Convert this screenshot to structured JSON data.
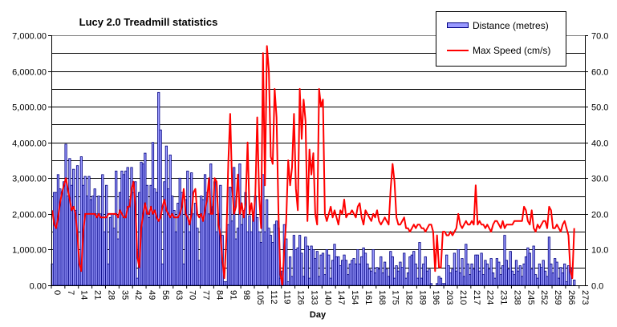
{
  "chart_data": {
    "type": "bar+line",
    "title": "Lucy 2.0 Treadmill statistics",
    "xlabel": "Day",
    "ylabel": "",
    "ylabel_right": "",
    "ylim": [
      0,
      7000
    ],
    "ylim_right": [
      0,
      70
    ],
    "y_ticks": [
      "0.00",
      "1,000.00",
      "2,000.00",
      "3,000.00",
      "4,000.00",
      "5,000.00",
      "6,000.00",
      "7,000.00"
    ],
    "y_ticks_right": [
      "0.0",
      "10.0",
      "20.0",
      "30.0",
      "40.0",
      "50.0",
      "60.0",
      "70.0"
    ],
    "x_ticks": [
      "0",
      "7",
      "14",
      "21",
      "28",
      "35",
      "42",
      "49",
      "56",
      "63",
      "70",
      "77",
      "84",
      "91",
      "98",
      "105",
      "112",
      "119",
      "126",
      "133",
      "140",
      "147",
      "154",
      "161",
      "168",
      "175",
      "182",
      "189",
      "196",
      "203",
      "210",
      "217",
      "224",
      "231",
      "238",
      "245",
      "252",
      "259",
      "266",
      "273"
    ],
    "x_range_days": [
      0,
      276
    ],
    "grid": "horizontal every 500 m (5 cm/s)",
    "legend_position": "top-right",
    "colors": {
      "distance_fill": "#9999FF",
      "distance_border": "#000080",
      "speed_line": "#FF0000"
    },
    "series": [
      {
        "name": "Distance (metres)",
        "type": "bar",
        "axis": "left",
        "values": [
          600,
          2600,
          2600,
          3100,
          2700,
          2600,
          2900,
          3950,
          2500,
          3550,
          2800,
          3250,
          2100,
          3350,
          600,
          3600,
          2800,
          3050,
          2500,
          3050,
          2400,
          2500,
          2700,
          2000,
          2500,
          2000,
          3100,
          1500,
          2800,
          600,
          1900,
          2000,
          1600,
          3200,
          1300,
          2600,
          3200,
          3100,
          3200,
          3300,
          2400,
          3300,
          2600,
          2900,
          200,
          2600,
          3450,
          3400,
          3700,
          2800,
          1900,
          2800,
          4000,
          2700,
          2600,
          5400,
          4350,
          600,
          2900,
          3900,
          2700,
          3650,
          2500,
          2100,
          1500,
          2300,
          3000,
          2600,
          600,
          2400,
          3200,
          1500,
          3150,
          2000,
          2300,
          1600,
          700,
          2500,
          2400,
          3100,
          2600,
          2000,
          3400,
          2200,
          2900,
          1500,
          2000,
          2800,
          1400,
          100,
          100,
          1700,
          2750,
          1800,
          3300,
          1300,
          1600,
          3400,
          1700,
          2100,
          2600,
          1500,
          1950,
          1500,
          2000,
          2500,
          1900,
          1500,
          1200,
          3100,
          1500,
          2400,
          1600,
          1400,
          1200,
          1700,
          1800,
          1600,
          200,
          400,
          1700,
          1300,
          100,
          800,
          250,
          1400,
          1000,
          1050,
          1400,
          900,
          250,
          1350,
          1100,
          200,
          1100,
          1000,
          750,
          950,
          250,
          850,
          900,
          300,
          1000,
          850,
          200,
          700,
          1150,
          800,
          800,
          550,
          700,
          850,
          700,
          300,
          600,
          700,
          750,
          600,
          1000,
          600,
          800,
          1050,
          900,
          600,
          450,
          400,
          1000,
          350,
          500,
          450,
          800,
          350,
          650,
          450,
          250,
          950,
          800,
          200,
          550,
          400,
          650,
          500,
          900,
          200,
          350,
          800,
          850,
          950,
          600,
          200,
          1200,
          200,
          600,
          800,
          400,
          450,
          50,
          0,
          0,
          50,
          250,
          200,
          50,
          50,
          850,
          550,
          350,
          450,
          900,
          400,
          1000,
          350,
          750,
          250,
          1150,
          600,
          300,
          600,
          450,
          850,
          850,
          400,
          900,
          300,
          700,
          600,
          450,
          750,
          350,
          200,
          750,
          650,
          300,
          550,
          1400,
          700,
          450,
          950,
          400,
          300,
          700,
          400,
          550,
          250,
          600,
          800,
          1050,
          900,
          450,
          1100,
          300,
          200,
          600,
          500,
          700,
          400,
          250,
          1350,
          600,
          350,
          750,
          650,
          200,
          500,
          350,
          600,
          100,
          550,
          500,
          0,
          150
        ]
      },
      {
        "name": "Max Speed (cm/s)",
        "type": "line",
        "axis": "right",
        "values": [
          21,
          17,
          16,
          19,
          23,
          26,
          28,
          30,
          27,
          24,
          21,
          22,
          20,
          14,
          6,
          4,
          15,
          20,
          20,
          20,
          20,
          20,
          20,
          19,
          20,
          19,
          19,
          19,
          19,
          20,
          20,
          20,
          20,
          20,
          19,
          21,
          20,
          19,
          19,
          22,
          22,
          27,
          29,
          22,
          8,
          5,
          16,
          20,
          23,
          20,
          20,
          22,
          20,
          21,
          19,
          18,
          19,
          22,
          24,
          21,
          20,
          19,
          20,
          19,
          19,
          19,
          20,
          22,
          27,
          20,
          19,
          17,
          20,
          26,
          27,
          20,
          19,
          20,
          18,
          21,
          24,
          30,
          20,
          20,
          30,
          29,
          17,
          14,
          7,
          2,
          13,
          34,
          48,
          28,
          20,
          22,
          31,
          20,
          23,
          19,
          23,
          40,
          20,
          23,
          18,
          25,
          47,
          25,
          16,
          65,
          28,
          67,
          60,
          36,
          34,
          55,
          47,
          20,
          3,
          0,
          10,
          18,
          35,
          28,
          33,
          48,
          27,
          21,
          55,
          41,
          52,
          46,
          18,
          38,
          31,
          37,
          20,
          17,
          55,
          50,
          52,
          20,
          18,
          20,
          22,
          19,
          21,
          19,
          17,
          21,
          20,
          24,
          19,
          20,
          20,
          21,
          20,
          19,
          22,
          23,
          19,
          17,
          21,
          20,
          19,
          18,
          20,
          19,
          21,
          18,
          17,
          18,
          19,
          18,
          17,
          27,
          34,
          29,
          19,
          17,
          17,
          18,
          19,
          16,
          16,
          15,
          16,
          17,
          16,
          17,
          17,
          16,
          16,
          15,
          16,
          17,
          17,
          15,
          4,
          14,
          5,
          5,
          15,
          15,
          14,
          14,
          15,
          14,
          15,
          16,
          20,
          17,
          16,
          17,
          18,
          17,
          17,
          18,
          17,
          28,
          17,
          18,
          17,
          17,
          16,
          17,
          16,
          15,
          17,
          18,
          18,
          17,
          16,
          18,
          16,
          17,
          17,
          17,
          17,
          18,
          18,
          18,
          18,
          18,
          22,
          21,
          18,
          17,
          21,
          16,
          15,
          17,
          16,
          17,
          18,
          18,
          16,
          22,
          21,
          16,
          16,
          17,
          16,
          15,
          17,
          18,
          16,
          14,
          4,
          2,
          16
        ]
      }
    ]
  }
}
